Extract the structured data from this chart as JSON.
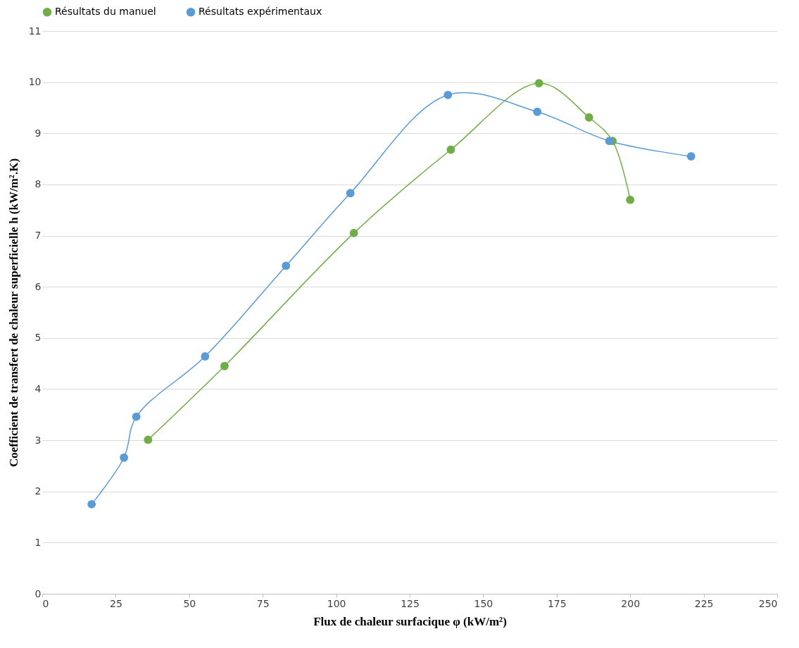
{
  "chart_data": {
    "type": "line",
    "xlabel": "Flux de chaleur surfacique φ (kW/m²)",
    "ylabel": "Coefficient de transfert de chaleur superficielle h (kW/m².K)",
    "xlim": [
      0,
      250
    ],
    "xticks": [
      0,
      25,
      50,
      75,
      100,
      125,
      150,
      175,
      200,
      225,
      250
    ],
    "ylim": [
      0,
      11
    ],
    "yticks": [
      0,
      1,
      2,
      3,
      4,
      5,
      6,
      7,
      8,
      9,
      10,
      11
    ],
    "grid": "y",
    "legend": "top",
    "marker": "circle",
    "line_style": "solid",
    "series": [
      {
        "name": "Résultats du manuel",
        "color": "#70ad47",
        "x": [
          36,
          62,
          106,
          139,
          169,
          186,
          194,
          200
        ],
        "values": [
          3.01,
          4.45,
          7.05,
          8.68,
          9.98,
          9.31,
          8.85,
          7.7
        ]
      },
      {
        "name": "Résultats expérimentaux",
        "color": "#5b9bd5",
        "x": [
          16.8,
          27.8,
          32,
          55.4,
          82.9,
          104.8,
          138,
          168.4,
          192.9,
          220.7
        ],
        "values": [
          1.75,
          2.66,
          3.46,
          4.64,
          6.41,
          7.83,
          9.75,
          9.42,
          8.85,
          8.55
        ]
      }
    ]
  }
}
